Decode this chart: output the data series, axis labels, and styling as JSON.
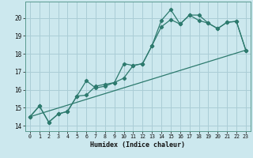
{
  "xlabel": "Humidex (Indice chaleur)",
  "ylabel": "",
  "bg_color": "#cce8ee",
  "grid_color": "#aacdd6",
  "line_color": "#2d7a6e",
  "xlim": [
    -0.5,
    23.5
  ],
  "ylim": [
    13.7,
    20.9
  ],
  "xticks": [
    0,
    1,
    2,
    3,
    4,
    5,
    6,
    7,
    8,
    9,
    10,
    11,
    12,
    13,
    14,
    15,
    16,
    17,
    18,
    19,
    20,
    21,
    22,
    23
  ],
  "yticks": [
    14,
    15,
    16,
    17,
    18,
    19,
    20
  ],
  "line1_x": [
    0,
    1,
    2,
    3,
    4,
    5,
    6,
    7,
    8,
    9,
    10,
    11,
    12,
    13,
    14,
    15,
    16,
    17,
    18,
    19,
    20,
    21,
    22,
    23
  ],
  "line1_y": [
    14.5,
    15.1,
    14.2,
    14.65,
    14.8,
    15.65,
    16.5,
    16.1,
    16.2,
    16.4,
    16.65,
    17.35,
    17.45,
    18.45,
    19.5,
    19.9,
    19.65,
    20.15,
    19.85,
    19.7,
    19.4,
    19.75,
    19.8,
    18.2
  ],
  "line2_x": [
    0,
    1,
    2,
    3,
    4,
    5,
    6,
    7,
    8,
    9,
    10,
    11,
    12,
    13,
    14,
    15,
    16,
    17,
    18,
    19,
    20,
    21,
    22,
    23
  ],
  "line2_y": [
    14.5,
    15.1,
    14.2,
    14.65,
    14.8,
    15.65,
    15.7,
    16.2,
    16.3,
    16.4,
    17.45,
    17.35,
    17.45,
    18.45,
    19.85,
    20.45,
    19.65,
    20.15,
    20.15,
    19.7,
    19.4,
    19.75,
    19.8,
    18.2
  ],
  "line3_x": [
    0,
    23
  ],
  "line3_y": [
    14.5,
    18.2
  ]
}
